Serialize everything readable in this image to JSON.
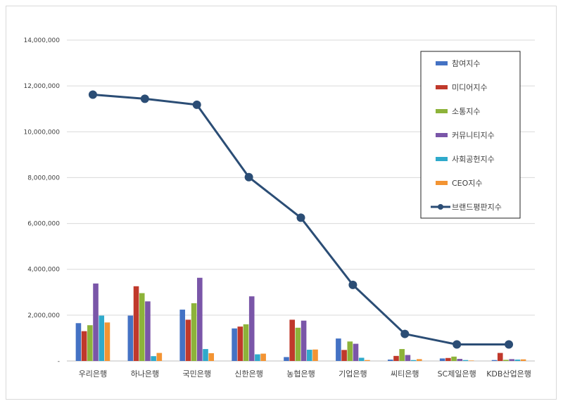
{
  "chart_data": {
    "type": "bar",
    "categories": [
      "우리은행",
      "하나은행",
      "국민은행",
      "신한은행",
      "농협은행",
      "기업은행",
      "씨티은행",
      "SC제일은행",
      "KDB산업은행"
    ],
    "ylim": [
      0,
      14000000
    ],
    "yticks": [
      0,
      2000000,
      4000000,
      6000000,
      8000000,
      10000000,
      12000000,
      14000000
    ],
    "ytick_labels": [
      "-",
      "2,000,000",
      "4,000,000",
      "6,000,000",
      "8,000,000",
      "10,000,000",
      "12,000,000",
      "14,000,000"
    ],
    "grid": true,
    "legend_position": "top-right",
    "series": [
      {
        "name": "참여지수",
        "kind": "bar",
        "color": "#4472C4",
        "values": [
          1650000,
          1980000,
          2240000,
          1420000,
          170000,
          980000,
          60000,
          110000,
          40000
        ]
      },
      {
        "name": "미디어지수",
        "kind": "bar",
        "color": "#C0392B",
        "values": [
          1300000,
          3260000,
          1800000,
          1500000,
          1800000,
          480000,
          220000,
          130000,
          350000
        ]
      },
      {
        "name": "소통지수",
        "kind": "bar",
        "color": "#8DB33A",
        "values": [
          1560000,
          2960000,
          2520000,
          1600000,
          1450000,
          850000,
          520000,
          190000,
          50000
        ]
      },
      {
        "name": "커뮤니티지수",
        "kind": "bar",
        "color": "#7A56A8",
        "values": [
          3380000,
          2600000,
          3630000,
          2820000,
          1760000,
          750000,
          260000,
          90000,
          80000
        ]
      },
      {
        "name": "사회공헌지수",
        "kind": "bar",
        "color": "#2FAACB",
        "values": [
          1980000,
          210000,
          520000,
          290000,
          490000,
          140000,
          40000,
          40000,
          60000
        ]
      },
      {
        "name": "CEO지수",
        "kind": "bar",
        "color": "#F39433",
        "values": [
          1680000,
          350000,
          340000,
          320000,
          500000,
          40000,
          80000,
          20000,
          70000
        ]
      },
      {
        "name": "브랜드평판지수",
        "kind": "line",
        "color": "#2B4D75",
        "values": [
          11620000,
          11440000,
          11180000,
          8020000,
          6250000,
          3320000,
          1180000,
          720000,
          720000
        ]
      }
    ]
  }
}
